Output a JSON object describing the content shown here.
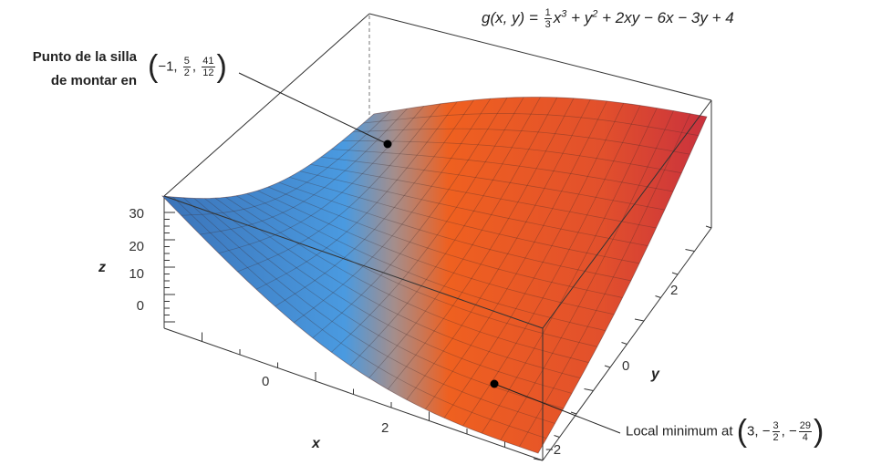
{
  "formula": {
    "lhs": "g(x, y) =",
    "frac_num": "1",
    "frac_den": "3",
    "t1": "x",
    "t1_exp": "3",
    "t2": "+ y",
    "t2_exp": "2",
    "rest": "+ 2xy − 6x − 3y + 4"
  },
  "saddle": {
    "label_line1": "Punto de la silla",
    "label_line2": "de montar en",
    "open": "(",
    "x": "−1,",
    "y_num": "5",
    "y_den": "2",
    "comma": ",",
    "z_num": "41",
    "z_den": "12",
    "close": ")"
  },
  "minimum": {
    "label": "Local minimum at",
    "open": "(",
    "x": "3,",
    "y_sign": "−",
    "y_num": "3",
    "y_den": "2",
    "comma": ",",
    "z_sign": "−",
    "z_num": "29",
    "z_den": "4",
    "close": ")"
  },
  "axes": {
    "x_label": "x",
    "y_label": "y",
    "z_label": "z",
    "x_ticks": [
      "0",
      "2"
    ],
    "y_ticks": [
      "−2",
      "0",
      "2"
    ],
    "z_ticks": [
      "0",
      "10",
      "20",
      "30"
    ]
  }
}
